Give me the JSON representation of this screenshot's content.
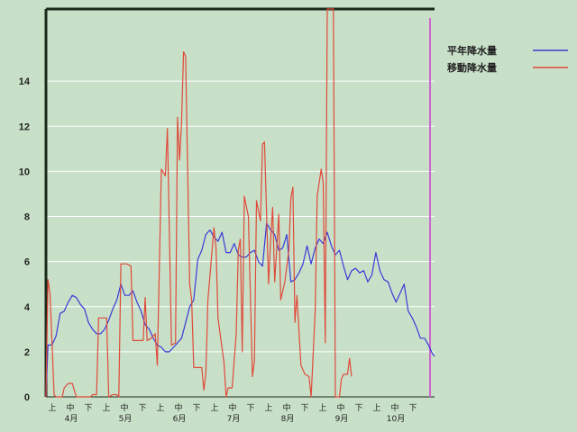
{
  "chart_data": {
    "type": "line",
    "title": "",
    "xlabel": "",
    "ylabel": "",
    "ylim": [
      0,
      17.2
    ],
    "y_ticks": [
      "0",
      "2",
      "4",
      "6",
      "8",
      "10",
      "12",
      "14"
    ],
    "grid": "horizontal",
    "legend_position": "top-right",
    "period_labels": [
      "上",
      "中",
      "下",
      "上",
      "中",
      "下",
      "上",
      "中",
      "下",
      "上",
      "中",
      "下",
      "上",
      "中",
      "下",
      "上",
      "中",
      "下",
      "上",
      "中",
      "下"
    ],
    "month_labels": [
      "4月",
      "5月",
      "6月",
      "7月",
      "8月",
      "9月",
      "10月"
    ],
    "colors": {
      "background": "#c8e0c8",
      "grid": "#ffffff",
      "axis": "#1a2a1a",
      "marker": "#cc66cc"
    },
    "series": [
      {
        "name": "平年降水量",
        "color": "#3a3ad8",
        "values": [
          0,
          2.3,
          2.3,
          2.7,
          3.7,
          3.8,
          4.2,
          4.5,
          4.4,
          4.1,
          3.9,
          3.3,
          3.0,
          2.8,
          2.8,
          3.0,
          3.4,
          3.9,
          4.3,
          5.0,
          4.5,
          4.5,
          4.7,
          4.2,
          3.8,
          3.2,
          3.0,
          2.6,
          2.3,
          2.2,
          2.0,
          2.0,
          2.2,
          2.4,
          2.6,
          3.3,
          4.0,
          4.3,
          6.1,
          6.5,
          7.2,
          7.4,
          7.1,
          6.9,
          7.3,
          6.4,
          6.4,
          6.8,
          6.3,
          6.2,
          6.2,
          6.4,
          6.5,
          6.0,
          5.8,
          7.7,
          7.4,
          7.2,
          6.5,
          6.6,
          7.2,
          5.1,
          5.2,
          5.5,
          5.9,
          6.7,
          5.9,
          6.6,
          7.0,
          6.8,
          7.3,
          6.7,
          6.3,
          6.5,
          5.8,
          5.2,
          5.6,
          5.7,
          5.5,
          5.6,
          5.1,
          5.4,
          6.4,
          5.6,
          5.2,
          5.1,
          4.6,
          4.2,
          4.6,
          5.0,
          3.8,
          3.5,
          3.1,
          2.6,
          2.6,
          2.3,
          2.1,
          1.9,
          1.8
        ],
        "x": [
          0,
          1,
          3,
          5,
          7,
          9,
          11,
          13,
          15,
          17,
          19,
          21,
          23,
          25,
          27,
          29,
          31,
          33,
          35,
          37,
          39,
          41,
          43,
          45,
          47,
          49,
          51,
          53,
          55,
          57,
          59,
          61,
          63,
          65,
          67,
          69,
          71,
          73,
          75,
          77,
          79,
          81,
          83,
          85,
          87,
          89,
          91,
          93,
          95,
          97,
          99,
          101,
          103,
          105,
          107,
          109,
          111,
          113,
          115,
          117,
          119,
          121,
          123,
          125,
          127,
          129,
          131,
          133,
          135,
          137,
          139,
          141,
          143,
          145,
          147,
          149,
          151,
          153,
          155,
          157,
          159,
          161,
          163,
          165,
          167,
          169,
          171,
          173,
          175,
          177,
          179,
          181,
          183,
          185,
          187,
          189,
          190,
          191,
          192
        ]
      },
      {
        "name": "移動降水量",
        "color": "#e04a3a",
        "values": [
          0,
          5.2,
          4.6,
          0.1,
          0.0,
          0.0,
          0.4,
          0.6,
          0.6,
          0.3,
          0.0,
          0.0,
          0.0,
          0.1,
          0.1,
          3.5,
          3.5,
          3.5,
          0.0,
          0.1,
          0.1,
          0.0,
          5.9,
          5.9,
          5.8,
          2.5,
          2.5,
          2.5,
          4.4,
          2.5,
          2.6,
          2.8,
          1.4,
          10.1,
          9.8,
          11.9,
          2.3,
          2.4,
          12.4,
          10.5,
          12.2,
          15.3,
          15.1,
          5.0,
          4.3,
          1.3,
          1.3,
          1.3,
          0.3,
          1.0,
          4.3,
          7.5,
          6.6,
          3.5,
          1.5,
          0.0,
          0.4,
          0.4,
          2.8,
          6.5,
          7.0,
          2.0,
          8.9,
          8.0,
          0.9,
          1.6,
          8.7,
          7.8,
          11.2,
          11.3,
          5.0,
          7.0,
          8.4,
          5.1,
          8.1,
          4.3,
          5.1,
          6.5,
          8.8,
          9.3,
          3.3,
          4.5,
          1.4,
          1.0,
          0.9,
          0.0,
          3.8,
          8.9,
          10.1,
          9.5,
          2.4,
          17.2,
          17.2,
          0.0,
          0.0,
          0.8,
          1.0,
          1.0,
          1.7,
          0.9
        ],
        "x": [
          0,
          1,
          2,
          4,
          5,
          8,
          9,
          11,
          13,
          14,
          15,
          18,
          22,
          23,
          25,
          26,
          28,
          30,
          31,
          33,
          35,
          36,
          37,
          40,
          42,
          43,
          46,
          48,
          49,
          50,
          52,
          54,
          55,
          57,
          59,
          60,
          62,
          64,
          65,
          66,
          67,
          68,
          69,
          71,
          72,
          73,
          76,
          77,
          78,
          79,
          80,
          83,
          84,
          85,
          88,
          89,
          90,
          92,
          94,
          95,
          96,
          97,
          98,
          100,
          102,
          103,
          104,
          106,
          107,
          108,
          110,
          111,
          112,
          113,
          115,
          116,
          118,
          120,
          121,
          122,
          123,
          124,
          126,
          128,
          130,
          131,
          133,
          134,
          136,
          137,
          138,
          139,
          142,
          143,
          145,
          146,
          147,
          149,
          150,
          151
        ]
      }
    ]
  }
}
